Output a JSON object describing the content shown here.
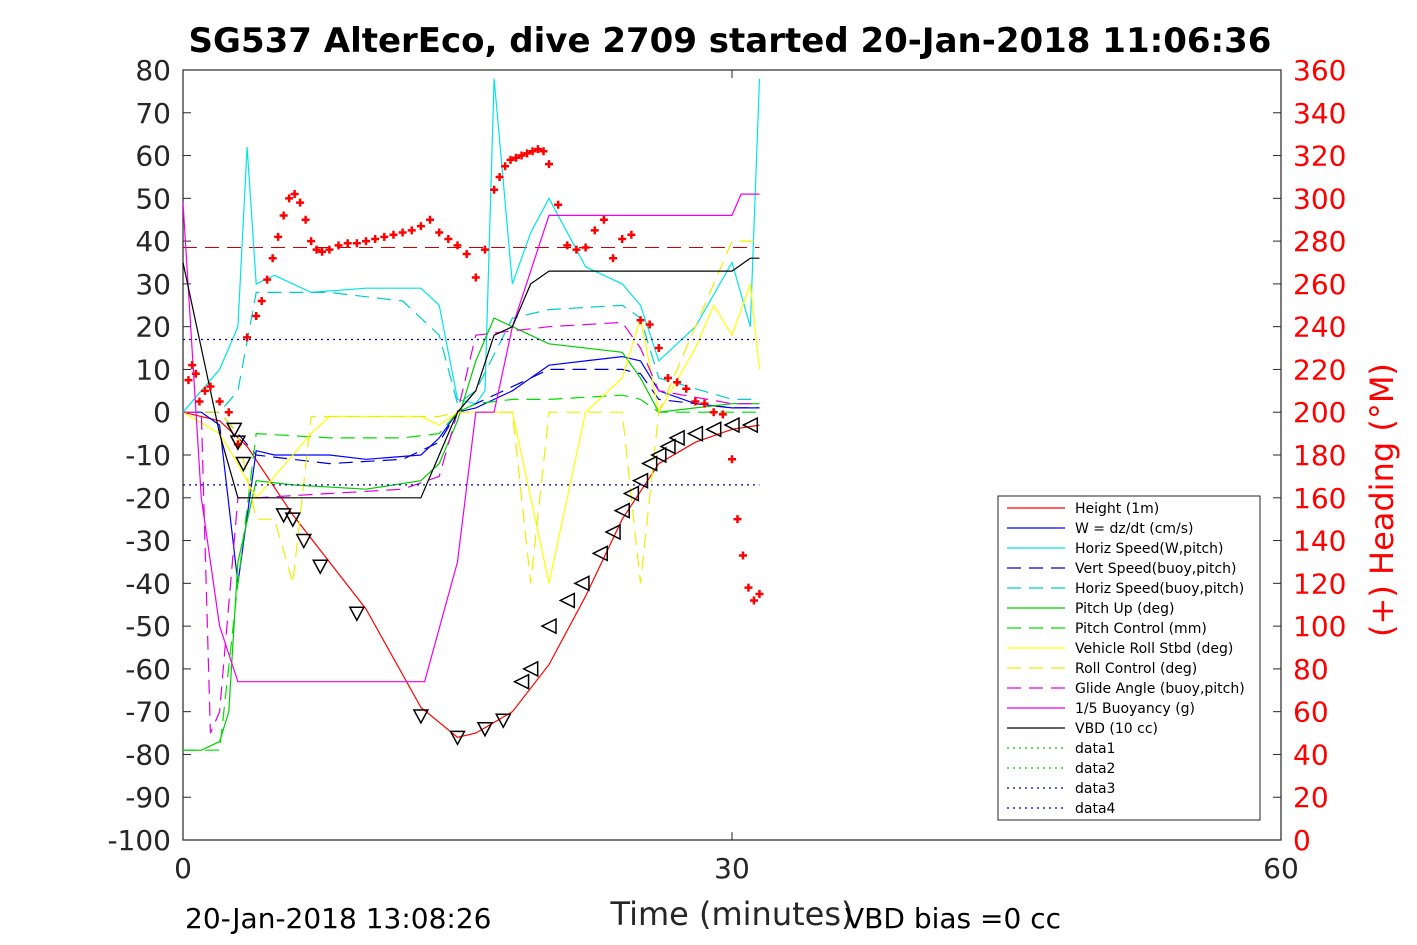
{
  "chart_data": {
    "type": "line",
    "title": "SG537 AlterEco, dive 2709 started 20-Jan-2018 11:06:36",
    "xlabel": "Time (minutes)",
    "ylabel": "",
    "y2label": "(+) Heading (°M)",
    "xlim": [
      0,
      60
    ],
    "ylim": [
      -100,
      80
    ],
    "y2lim": [
      0,
      360
    ],
    "xticks": [
      "0",
      "30",
      "60"
    ],
    "yticks": [
      "80",
      "70",
      "60",
      "50",
      "40",
      "30",
      "20",
      "10",
      "0",
      "-10",
      "-20",
      "-30",
      "-40",
      "-50",
      "-60",
      "-70",
      "-80",
      "-90",
      "-100"
    ],
    "y2ticks": [
      "360",
      "340",
      "320",
      "300",
      "280",
      "260",
      "240",
      "220",
      "200",
      "180",
      "160",
      "140",
      "120",
      "100",
      "80",
      "60",
      "40",
      "20",
      "0"
    ],
    "footer_left": "20-Jan-2018 13:08:26",
    "footer_right": "VBD bias =0 cc",
    "legend_position": "lower-right inside",
    "series": [
      {
        "name": "Height (1m)",
        "color": "#ff0000",
        "style": "solid",
        "x": [
          0,
          2,
          3.5,
          6,
          10,
          13,
          15,
          16,
          18,
          20,
          22,
          24,
          26,
          28,
          30,
          31.5
        ],
        "y": [
          0,
          -2,
          -8,
          -24,
          -46,
          -69,
          -76,
          -75,
          -70,
          -59,
          -43,
          -25,
          -12,
          -7,
          -4,
          -3
        ]
      },
      {
        "name": "W = dz/dt (cm/s)",
        "color": "#0000ff",
        "style": "solid",
        "x": [
          0,
          1,
          2,
          3,
          4,
          5,
          8,
          10,
          13,
          14,
          15,
          16,
          18,
          20,
          22,
          24,
          25,
          26,
          28,
          30,
          31.5
        ],
        "y": [
          0,
          0,
          -3,
          -40,
          -9,
          -10,
          -10,
          -11,
          -10,
          -6,
          0,
          1,
          5,
          11,
          12,
          13,
          12,
          5,
          2,
          1,
          1
        ]
      },
      {
        "name": "Horiz Speed(W,pitch)",
        "color": "#00e5e5",
        "style": "solid",
        "x": [
          0,
          1,
          2,
          3,
          3.5,
          4,
          5,
          7,
          10,
          13,
          14,
          15,
          16,
          16.5,
          17,
          18,
          19,
          20,
          22,
          24,
          25,
          26,
          28,
          30,
          31,
          31.5
        ],
        "y": [
          0,
          5,
          10,
          20,
          62,
          30,
          32,
          28,
          29,
          29,
          25,
          3,
          2,
          5,
          78,
          30,
          42,
          50,
          34,
          30,
          25,
          12,
          20,
          35,
          20,
          78
        ]
      },
      {
        "name": "Vert Speed(buoy,pitch)",
        "color": "#0000cc",
        "style": "dashed",
        "x": [
          0,
          2,
          3,
          4,
          8,
          12,
          14,
          15,
          16,
          18,
          20,
          24,
          25,
          26,
          30,
          31.5
        ],
        "y": [
          0,
          0,
          -5,
          -10,
          -12,
          -11,
          -7,
          0,
          2,
          6,
          10,
          10,
          9,
          3,
          1,
          1
        ]
      },
      {
        "name": "Horiz Speed(buoy,pitch)",
        "color": "#00cccc",
        "style": "dashed",
        "x": [
          0,
          2,
          3,
          4,
          8,
          12,
          14,
          15,
          16,
          18,
          20,
          24,
          25,
          26,
          30,
          31.5
        ],
        "y": [
          0,
          0,
          5,
          28,
          28,
          26,
          18,
          2,
          5,
          22,
          24,
          25,
          22,
          8,
          3,
          3
        ]
      },
      {
        "name": "Pitch Up (deg)",
        "color": "#00cc00",
        "style": "solid",
        "x": [
          0,
          1,
          2,
          2.5,
          3,
          4,
          6,
          10,
          13,
          14,
          15,
          16,
          17,
          18,
          20,
          24,
          25,
          26,
          28,
          30,
          31.5
        ],
        "y": [
          -79,
          -79,
          -77,
          -70,
          -35,
          -16,
          -17,
          -18,
          -16,
          -12,
          -2,
          12,
          22,
          20,
          16,
          14,
          8,
          0,
          1,
          2,
          2
        ]
      },
      {
        "name": "Pitch Control (mm)",
        "color": "#00dd00",
        "style": "dashed",
        "x": [
          0,
          2,
          3,
          4,
          8,
          12,
          14,
          15,
          16,
          18,
          20,
          24,
          25,
          26,
          30,
          31.5
        ],
        "y": [
          -79,
          -79,
          -40,
          -5,
          -6,
          -6,
          -5,
          0,
          2,
          3,
          3,
          4,
          3,
          0,
          0,
          0
        ]
      },
      {
        "name": "Vehicle Roll Stbd (deg)",
        "color": "#ffff00",
        "style": "solid",
        "x": [
          0,
          2,
          3,
          4,
          5,
          6,
          7,
          8,
          10,
          13,
          14,
          15,
          16,
          18,
          20,
          22,
          24,
          25,
          26,
          28,
          29,
          30,
          31,
          31.5
        ],
        "y": [
          0,
          -5,
          -12,
          -20,
          -15,
          -10,
          -5,
          -1,
          -1,
          -1,
          -3,
          0,
          0,
          0,
          -40,
          0,
          8,
          22,
          0,
          15,
          25,
          18,
          30,
          10
        ]
      },
      {
        "name": "Roll Control (deg)",
        "color": "#eeee00",
        "style": "dashed",
        "x": [
          0,
          2,
          3,
          4,
          5,
          6,
          7,
          8,
          10,
          13,
          14,
          15,
          16,
          18,
          19,
          20,
          22,
          24,
          25,
          26,
          30,
          31.5
        ],
        "y": [
          0,
          0,
          -5,
          -25,
          -25,
          -40,
          -1,
          -1,
          -1,
          -1,
          -1,
          0,
          0,
          0,
          -40,
          0,
          0,
          0,
          -40,
          0,
          40,
          40
        ]
      },
      {
        "name": "Glide Angle (buoy,pitch)",
        "color": "#dd00dd",
        "style": "dashed",
        "x": [
          0,
          1,
          1.5,
          2,
          3,
          4,
          8,
          12,
          14,
          15,
          16,
          18,
          20,
          24,
          25,
          26,
          30,
          31.5
        ],
        "y": [
          0,
          0,
          -75,
          -70,
          -20,
          -20,
          -19,
          -18,
          -15,
          0,
          18,
          19,
          20,
          21,
          15,
          5,
          2,
          2
        ]
      },
      {
        "name": "1/5 Buoyancy (g)",
        "color": "#ee00ee",
        "style": "solid",
        "x": [
          0,
          1,
          2,
          3,
          13.2,
          15,
          16,
          17,
          18,
          20,
          24,
          28,
          30,
          30.5,
          31,
          31.5
        ],
        "y": [
          49,
          -20,
          -50,
          -63,
          -63,
          -35,
          0,
          0,
          20,
          46,
          46,
          46,
          46,
          51,
          51,
          51
        ]
      },
      {
        "name": "VBD (10 cc)",
        "color": "#000000",
        "style": "solid",
        "x": [
          0,
          1,
          2,
          3,
          13,
          14,
          15,
          16,
          17,
          18,
          19,
          20,
          24,
          28,
          30,
          31,
          31.5
        ],
        "y": [
          35,
          15,
          -5,
          -20,
          -20,
          -10,
          0,
          5,
          18,
          20,
          30,
          33,
          33,
          33,
          33,
          36,
          36
        ]
      },
      {
        "name": "data1",
        "color": "#00cc00",
        "style": "dotted",
        "x": [],
        "y": []
      },
      {
        "name": "data2",
        "color": "#00cc00",
        "style": "dotted",
        "x": [],
        "y": []
      },
      {
        "name": "data3",
        "color": "#0000aa",
        "style": "dotted",
        "x": [
          0,
          31.5
        ],
        "y": [
          17,
          17
        ]
      },
      {
        "name": "data4",
        "color": "#0000aa",
        "style": "dotted",
        "x": [
          0,
          31.5
        ],
        "y": [
          -17,
          -17
        ]
      }
    ],
    "reference_line": {
      "color": "#cc0000",
      "style": "dashed",
      "y": 38.5,
      "x": [
        0,
        31.5
      ]
    },
    "heading_points": {
      "color": "#ff0000",
      "marker": "+",
      "x": [
        0.3,
        0.5,
        0.7,
        0.9,
        1.2,
        1.5,
        2,
        2.5,
        3,
        3.5,
        4,
        4.3,
        4.6,
        4.9,
        5.2,
        5.5,
        5.8,
        6.1,
        6.4,
        6.7,
        7,
        7.3,
        7.6,
        8,
        8.5,
        9,
        9.5,
        10,
        10.5,
        11,
        11.5,
        12,
        12.5,
        13,
        13.5,
        14,
        14.5,
        15,
        15.5,
        16,
        16.5,
        17,
        17.3,
        17.6,
        17.9,
        18.2,
        18.5,
        18.8,
        19.1,
        19.4,
        19.7,
        20,
        20.5,
        21,
        21.5,
        22,
        22.5,
        23,
        23.5,
        24,
        24.5,
        25,
        25.5,
        26,
        26.5,
        27,
        27.5,
        28,
        28.5,
        29,
        29.5,
        30,
        30.3,
        30.6,
        30.9,
        31.2,
        31.5
      ],
      "y": [
        215,
        222,
        218,
        205,
        210,
        212,
        205,
        200,
        185,
        235,
        245,
        252,
        262,
        272,
        282,
        292,
        300,
        302,
        298,
        290,
        280,
        276,
        275,
        276,
        278,
        279,
        279,
        280,
        281,
        282,
        283,
        284,
        285,
        287,
        290,
        284,
        281,
        278,
        274,
        263,
        276,
        304,
        310,
        315,
        318,
        319,
        320,
        321,
        322,
        323,
        322,
        316,
        297,
        278,
        276,
        277,
        285,
        290,
        272,
        281,
        283,
        243,
        241,
        230,
        216,
        214,
        211,
        205,
        204,
        200,
        199,
        178,
        150,
        133,
        118,
        112,
        115
      ]
    },
    "depth_markers": {
      "color": "#000000",
      "x": [
        2.8,
        3,
        3.3,
        5.5,
        6,
        6.6,
        7.5,
        9.5,
        13,
        15,
        16.5,
        17.5,
        18.5,
        19,
        20,
        21,
        21.8,
        22.8,
        23.5,
        24,
        24.5,
        25,
        25.5,
        26,
        26.5,
        27,
        28,
        29,
        30,
        31
      ],
      "y": [
        -4,
        -7,
        -12,
        -24,
        -25,
        -30,
        -36,
        -47,
        -71,
        -76,
        -74,
        -72,
        -63,
        -60,
        -50,
        -44,
        -40,
        -33,
        -28,
        -23,
        -19,
        -16,
        -12,
        -10,
        -8,
        -6,
        -5,
        -4,
        -3,
        -3
      ]
    }
  }
}
